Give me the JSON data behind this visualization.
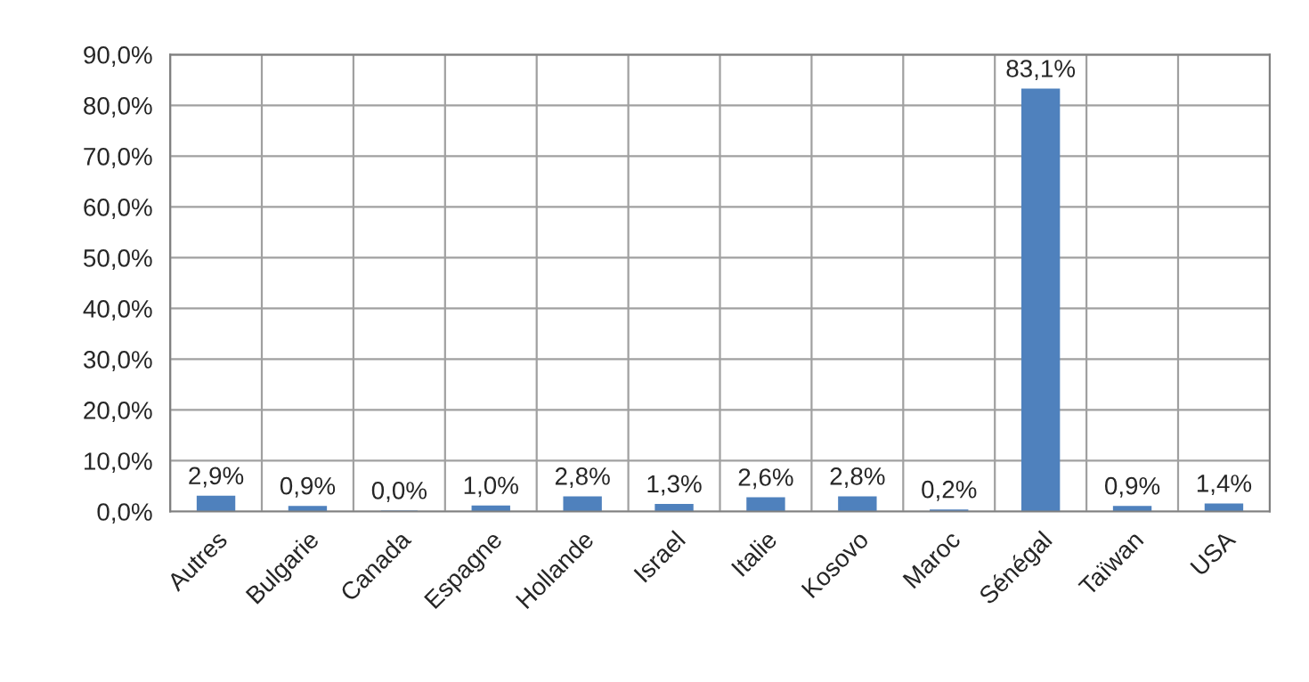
{
  "chart_data": {
    "type": "bar",
    "categories": [
      "Autres",
      "Bulgarie",
      "Canada",
      "Espagne",
      "Hollande",
      "Israel",
      "Italie",
      "Kosovo",
      "Maroc",
      "Sénégal",
      "Taïwan",
      "USA"
    ],
    "values": [
      2.9,
      0.9,
      0.0,
      1.0,
      2.8,
      1.3,
      2.6,
      2.8,
      0.2,
      83.1,
      0.9,
      1.4
    ],
    "value_labels": [
      "2,9%",
      "0,9%",
      "0,0%",
      "1,0%",
      "2,8%",
      "1,3%",
      "2,6%",
      "2,8%",
      "0,2%",
      "83,1%",
      "0,9%",
      "1,4%"
    ],
    "color": "#4f81bd",
    "ylim": [
      0,
      90
    ],
    "yticks": [
      {
        "value": 0,
        "label": "0,0%"
      },
      {
        "value": 10,
        "label": "10,0%"
      },
      {
        "value": 20,
        "label": "20,0%"
      },
      {
        "value": 30,
        "label": "30,0%"
      },
      {
        "value": 40,
        "label": "40,0%"
      },
      {
        "value": 50,
        "label": "50,0%"
      },
      {
        "value": 60,
        "label": "60,0%"
      },
      {
        "value": 70,
        "label": "70,0%"
      },
      {
        "value": 80,
        "label": "80,0%"
      },
      {
        "value": 90,
        "label": "90,0%"
      }
    ],
    "grid": true,
    "legend": false
  }
}
